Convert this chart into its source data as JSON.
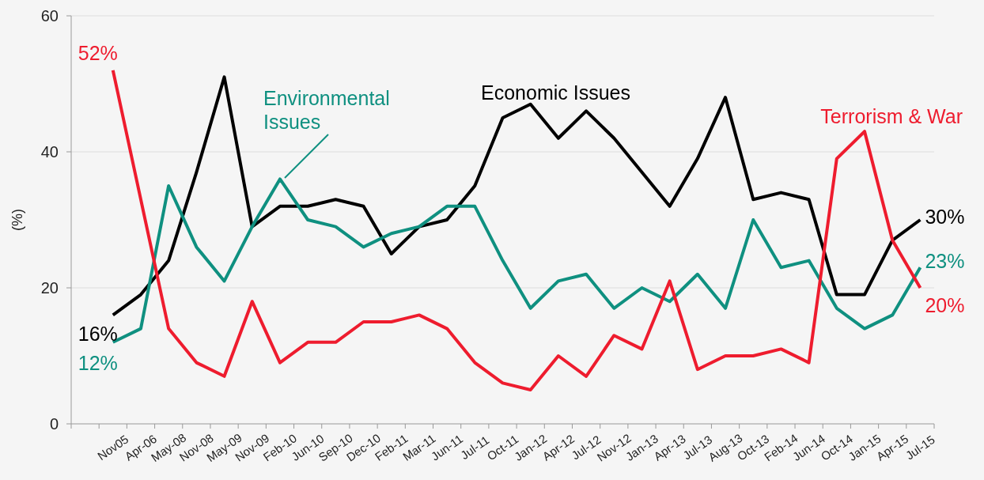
{
  "chart_data": {
    "type": "line",
    "ylabel": "(%)",
    "categories": [
      "Nov05",
      "Apr-06",
      "May-08",
      "Nov-08",
      "May-09",
      "Nov-09",
      "Feb-10",
      "Jun-10",
      "Sep-10",
      "Dec-10",
      "Feb-11",
      "Mar-11",
      "Jun-11",
      "Jul-11",
      "Oct-11",
      "Jan-12",
      "Apr-12",
      "Jul-12",
      "Nov-12",
      "Jan-13",
      "Apr-13",
      "Jul-13",
      "Aug-13",
      "Oct-13",
      "Feb-14",
      "Jun-14",
      "Oct-14",
      "Jan-15",
      "Apr-15",
      "Jul-15"
    ],
    "ylim": [
      0,
      60
    ],
    "yticks": [
      0,
      20,
      40,
      60
    ],
    "grid": "y",
    "series": [
      {
        "name": "Economic Issues",
        "color": "#000000",
        "values": [
          16,
          19,
          24,
          37,
          51,
          29,
          32,
          32,
          33,
          32,
          25,
          29,
          30,
          35,
          45,
          47,
          42,
          46,
          42,
          37,
          32,
          39,
          48,
          33,
          34,
          33,
          19,
          19,
          27,
          30
        ],
        "value_labels": [
          "16%",
          null,
          null,
          null,
          null,
          null,
          null,
          null,
          null,
          null,
          null,
          null,
          null,
          null,
          null,
          null,
          null,
          null,
          null,
          null,
          null,
          null,
          null,
          null,
          null,
          null,
          null,
          null,
          null,
          "30%"
        ]
      },
      {
        "name": "Environmental Issues",
        "color": "#0f9080",
        "values": [
          12,
          14,
          35,
          26,
          21,
          29,
          36,
          30,
          29,
          26,
          28,
          29,
          32,
          32,
          24,
          17,
          21,
          22,
          17,
          20,
          18,
          22,
          17,
          30,
          23,
          24,
          17,
          14,
          16,
          23
        ],
        "value_labels": [
          "12%",
          null,
          null,
          null,
          null,
          null,
          null,
          null,
          null,
          null,
          null,
          null,
          null,
          null,
          null,
          null,
          null,
          null,
          null,
          null,
          null,
          null,
          null,
          null,
          null,
          null,
          null,
          null,
          null,
          "23%"
        ]
      },
      {
        "name": "Terrorism & War",
        "color": "#ee1c2e",
        "values": [
          52,
          33,
          14,
          9,
          7,
          18,
          9,
          12,
          12,
          15,
          15,
          16,
          14,
          9,
          6,
          5,
          10,
          7,
          13,
          11,
          21,
          8,
          10,
          10,
          11,
          9,
          39,
          43,
          27,
          20
        ],
        "value_labels": [
          "52%",
          null,
          null,
          null,
          null,
          null,
          null,
          null,
          null,
          null,
          null,
          null,
          null,
          null,
          null,
          null,
          null,
          null,
          null,
          null,
          null,
          null,
          null,
          null,
          null,
          null,
          null,
          null,
          null,
          "20%"
        ]
      }
    ]
  }
}
